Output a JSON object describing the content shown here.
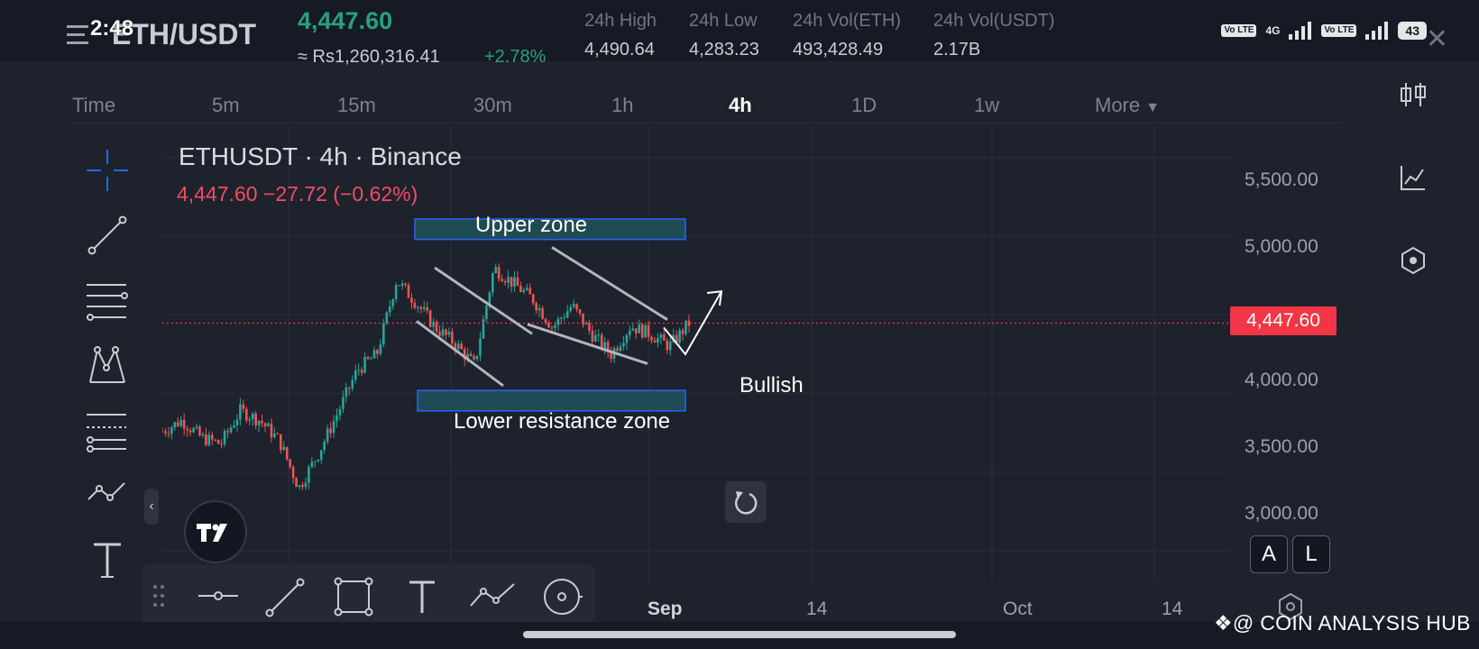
{
  "status": {
    "time": "2:48",
    "network": "4G",
    "volte": "Vo LTE",
    "battery": "43"
  },
  "header": {
    "pair": "ETH/USDT",
    "last_price": "4,447.60",
    "fiat_price": "≈ Rs1,260,316.41",
    "change_pct": "+2.78%",
    "stats": [
      {
        "label": "24h High",
        "value": "4,490.64"
      },
      {
        "label": "24h Low",
        "value": "4,283.23"
      },
      {
        "label": "24h Vol(ETH)",
        "value": "493,428.49"
      },
      {
        "label": "24h Vol(USDT)",
        "value": "2.17B"
      }
    ]
  },
  "intervals": [
    "Time",
    "5m",
    "15m",
    "30m",
    "1h",
    "4h",
    "1D",
    "1w",
    "More"
  ],
  "active_interval": "4h",
  "chart": {
    "title": "ETHUSDT · 4h · Binance",
    "ohlc": "4,447.60  −27.72 (−0.62%)",
    "price_tag": "4,447.60",
    "y_ticks": [
      "5,500.00",
      "5,000.00",
      "4,000.00",
      "3,500.00",
      "3,000.00"
    ],
    "x_ticks": [
      "Sep",
      "14",
      "Oct",
      "14"
    ],
    "annotations": {
      "upper_zone": "Upper zone",
      "lower_zone": "Lower resistance zone",
      "bullish": "Bullish"
    },
    "colors": {
      "up": "#26a69a",
      "down": "#ef5350",
      "zone_fill": "#1f4c52",
      "zone_border": "#2962ff",
      "price_line": "#f23645"
    }
  },
  "chart_data": {
    "type": "candlestick",
    "title": "ETHUSDT · 4h · Binance",
    "ylim": [
      2800,
      5700
    ],
    "x_ticks": [
      "Sep",
      "14",
      "Oct",
      "14"
    ],
    "last_close": 4447.6,
    "upper_zone": [
      4980,
      5110
    ],
    "lower_zone": [
      3890,
      4020
    ],
    "trend_points": [
      3760,
      3830,
      3720,
      3680,
      3890,
      3830,
      3700,
      3400,
      3620,
      3880,
      4150,
      4250,
      4720,
      4580,
      4420,
      4320,
      4180,
      4800,
      4700,
      4600,
      4420,
      4560,
      4380,
      4250,
      4430,
      4380,
      4300,
      4447.6
    ]
  },
  "left_tools": [
    "crosshair-icon",
    "trendline-icon",
    "horizontal-lines-icon",
    "pattern-icon",
    "fib-icon",
    "path-icon",
    "text-icon"
  ],
  "bottom_tools": [
    "drag-handle-icon",
    "horizontal-line-icon",
    "line-icon",
    "rectangle-icon",
    "text-icon",
    "path-icon",
    "brush-icon"
  ],
  "right_sidebar": [
    "candles-icon",
    "indicators-icon",
    "settings-hex-icon"
  ],
  "buttons": {
    "auto": "A",
    "log": "L",
    "collapse": "‹"
  },
  "watermark": "@ COIN ANALYSIS HUB"
}
